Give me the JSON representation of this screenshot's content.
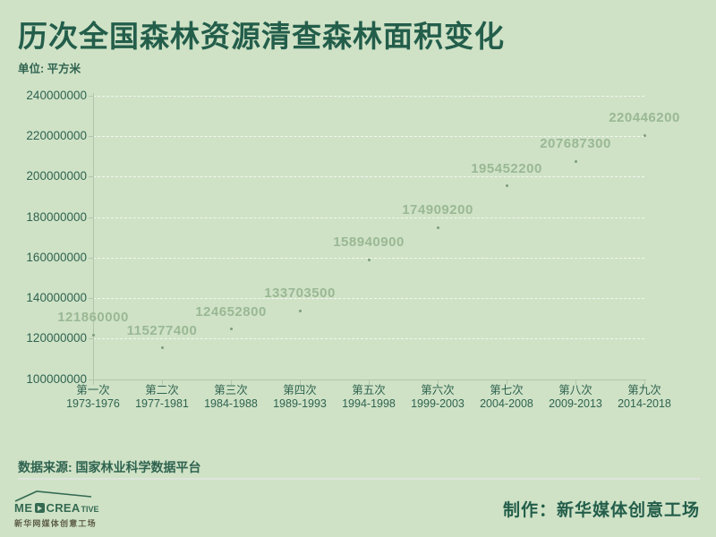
{
  "header": {
    "title": "历次全国森林资源清查森林面积变化",
    "unit": "单位: 平方米"
  },
  "footer": {
    "source": "数据来源: 国家林业科学数据平台",
    "credit": "制作：新华媒体创意工场",
    "logo": {
      "text_me": "ME",
      "text_crea": "CREA",
      "text_tive": "TIVE",
      "subtitle": "新华网媒体创意工场"
    }
  },
  "colors": {
    "background": "#cfe2c6",
    "title_text": "#235e4b",
    "axis_text": "#2f6350",
    "axis_line": "#b2c4ab",
    "grid_line": "rgba(255,255,255,0.72)",
    "data_label": "#9ab894",
    "dot": "#7e9c7f",
    "logo": "#346a52"
  },
  "chart_data": {
    "type": "scatter",
    "title": "历次全国森林资源清查森林面积变化",
    "unit": "平方米",
    "categories": [
      "第一次",
      "第二次",
      "第三次",
      "第四次",
      "第五次",
      "第六次",
      "第七次",
      "第八次",
      "第九次"
    ],
    "category_years": [
      "1973-1976",
      "1977-1981",
      "1984-1988",
      "1989-1993",
      "1994-1998",
      "1999-2003",
      "2004-2008",
      "2009-2013",
      "2014-2018"
    ],
    "values": [
      121860000,
      115277400,
      124652800,
      133703500,
      158940900,
      174909200,
      195452200,
      207687300,
      220446200
    ],
    "point_labels": [
      "121860000",
      "115277400",
      "124652800",
      "133703500",
      "158940900",
      "174909200",
      "195452200",
      "207687300",
      "220446200"
    ],
    "ylim": [
      100000000,
      240000000
    ],
    "y_ticks": [
      100000000,
      120000000,
      140000000,
      160000000,
      180000000,
      200000000,
      220000000,
      240000000
    ],
    "xlabel": "",
    "ylabel": "",
    "legend": "none",
    "grid": "horizontal-dashed",
    "point_labels_visible": true
  }
}
